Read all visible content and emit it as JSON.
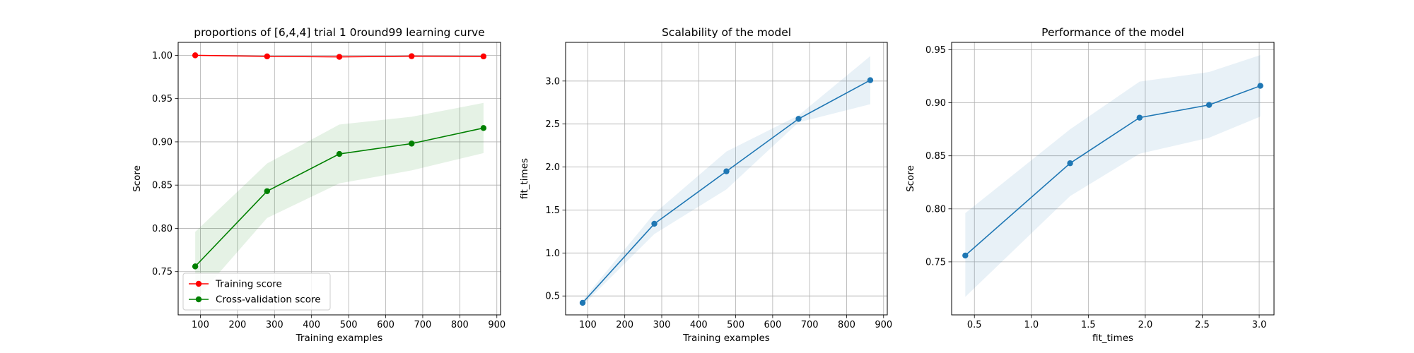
{
  "chart_data": [
    {
      "type": "line",
      "title": "proportions of [6,4,4] trial 1 0round99 learning curve",
      "xlabel": "Training examples",
      "ylabel": "Score",
      "xlim": [
        40,
        910
      ],
      "ylim": [
        0.7,
        1.015
      ],
      "xticks": [
        100,
        200,
        300,
        400,
        500,
        600,
        700,
        800,
        900
      ],
      "yticks": [
        0.75,
        0.8,
        0.85,
        0.9,
        0.95,
        1.0
      ],
      "grid": true,
      "legend": "lower left",
      "series": [
        {
          "name": "Training score",
          "color": "#ff0000",
          "x": [
            86,
            280,
            475,
            670,
            864
          ],
          "y": [
            1.0,
            0.9988,
            0.9982,
            0.999,
            0.9988
          ],
          "lower": [
            0.9995,
            0.9983,
            0.9977,
            0.9985,
            0.9983
          ],
          "upper": [
            1.0005,
            0.9993,
            0.9987,
            0.9995,
            0.9993
          ]
        },
        {
          "name": "Cross-validation score",
          "color": "#008000",
          "x": [
            86,
            280,
            475,
            670,
            864
          ],
          "y": [
            0.756,
            0.843,
            0.886,
            0.898,
            0.916
          ],
          "lower": [
            0.717,
            0.812,
            0.852,
            0.867,
            0.887
          ],
          "upper": [
            0.796,
            0.875,
            0.92,
            0.929,
            0.945
          ]
        }
      ]
    },
    {
      "type": "line",
      "title": "Scalability of the model",
      "xlabel": "Training examples",
      "ylabel": "fit_times",
      "xlim": [
        40,
        910
      ],
      "ylim": [
        0.28,
        3.45
      ],
      "xticks": [
        100,
        200,
        300,
        400,
        500,
        600,
        700,
        800,
        900
      ],
      "yticks": [
        0.5,
        1.0,
        1.5,
        2.0,
        2.5,
        3.0
      ],
      "grid": true,
      "series": [
        {
          "color": "#1f77b4",
          "x": [
            86,
            280,
            475,
            670,
            864
          ],
          "y": [
            0.42,
            1.34,
            1.95,
            2.56,
            3.01
          ],
          "lower": [
            0.39,
            1.22,
            1.74,
            2.52,
            2.73
          ],
          "upper": [
            0.45,
            1.46,
            2.18,
            2.6,
            3.29
          ]
        }
      ]
    },
    {
      "type": "line",
      "title": "Performance of the model",
      "xlabel": "fit_times",
      "ylabel": "Score",
      "xlim": [
        0.3,
        3.13
      ],
      "ylim": [
        0.7,
        0.957
      ],
      "xticks": [
        0.5,
        1.0,
        1.5,
        2.0,
        2.5,
        3.0
      ],
      "yticks": [
        0.75,
        0.8,
        0.85,
        0.9,
        0.95
      ],
      "grid": true,
      "series": [
        {
          "color": "#1f77b4",
          "x": [
            0.42,
            1.34,
            1.95,
            2.56,
            3.01
          ],
          "y": [
            0.756,
            0.843,
            0.886,
            0.898,
            0.916
          ],
          "lower": [
            0.717,
            0.812,
            0.852,
            0.867,
            0.887
          ],
          "upper": [
            0.796,
            0.875,
            0.92,
            0.929,
            0.945
          ]
        }
      ]
    }
  ]
}
